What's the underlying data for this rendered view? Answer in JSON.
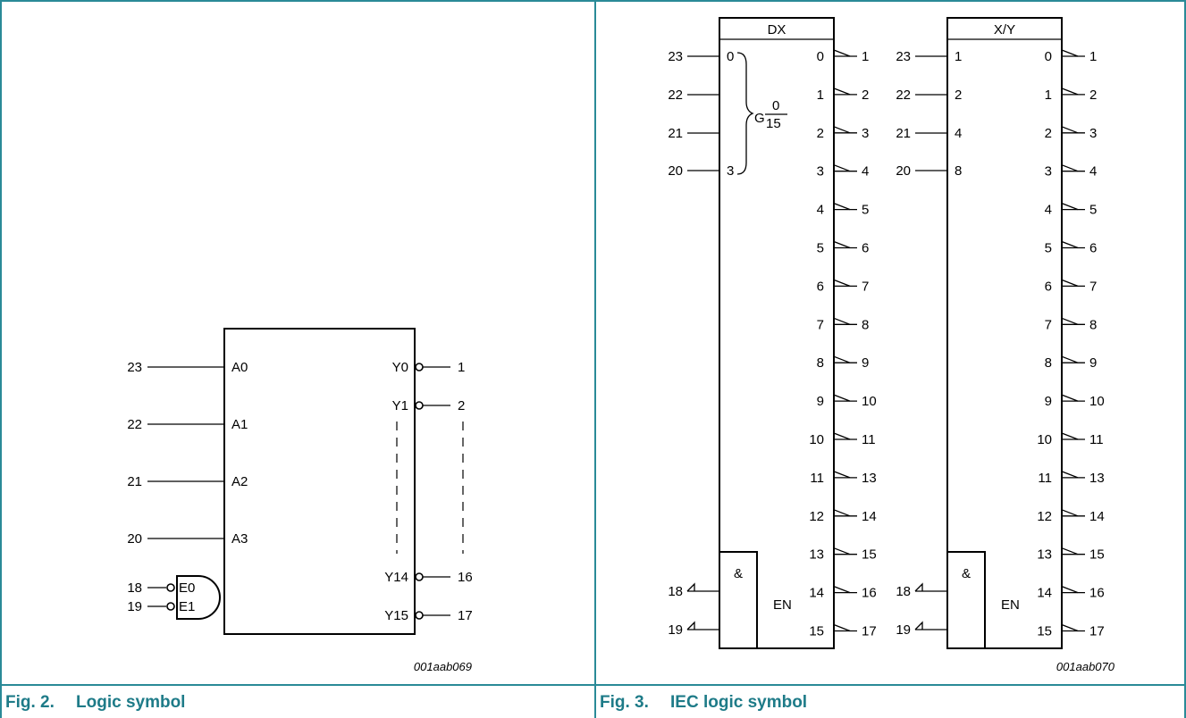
{
  "fig2": {
    "number": "Fig. 2.",
    "title": "Logic symbol",
    "id": "001aab069",
    "address_inputs": [
      {
        "pin": "23",
        "label": "A0"
      },
      {
        "pin": "22",
        "label": "A1"
      },
      {
        "pin": "21",
        "label": "A2"
      },
      {
        "pin": "20",
        "label": "A3"
      }
    ],
    "enable_inputs": [
      {
        "pin": "18",
        "label": "E0"
      },
      {
        "pin": "19",
        "label": "E1"
      }
    ],
    "outputs_top": [
      {
        "label": "Y0",
        "pin": "1"
      },
      {
        "label": "Y1",
        "pin": "2"
      }
    ],
    "outputs_bottom": [
      {
        "label": "Y14",
        "pin": "16"
      },
      {
        "label": "Y15",
        "pin": "17"
      }
    ]
  },
  "fig3": {
    "number": "Fig. 3.",
    "title": "IEC logic symbol",
    "id": "001aab070",
    "dx": {
      "header": "DX",
      "inputs": [
        {
          "pin": "23",
          "label": "0"
        },
        {
          "pin": "22",
          "label": ""
        },
        {
          "pin": "21",
          "label": ""
        },
        {
          "pin": "20",
          "label": "3"
        }
      ],
      "group_label": "G",
      "group_top": "0",
      "group_bottom": "15"
    },
    "xy": {
      "header": "X/Y",
      "inputs": [
        {
          "pin": "23",
          "label": "1"
        },
        {
          "pin": "22",
          "label": "2"
        },
        {
          "pin": "21",
          "label": "4"
        },
        {
          "pin": "20",
          "label": "8"
        }
      ]
    },
    "outputs": [
      {
        "label": "0",
        "pin": "1"
      },
      {
        "label": "1",
        "pin": "2"
      },
      {
        "label": "2",
        "pin": "3"
      },
      {
        "label": "3",
        "pin": "4"
      },
      {
        "label": "4",
        "pin": "5"
      },
      {
        "label": "5",
        "pin": "6"
      },
      {
        "label": "6",
        "pin": "7"
      },
      {
        "label": "7",
        "pin": "8"
      },
      {
        "label": "8",
        "pin": "9"
      },
      {
        "label": "9",
        "pin": "10"
      },
      {
        "label": "10",
        "pin": "11"
      },
      {
        "label": "11",
        "pin": "13"
      },
      {
        "label": "12",
        "pin": "14"
      },
      {
        "label": "13",
        "pin": "15"
      },
      {
        "label": "14",
        "pin": "16"
      },
      {
        "label": "15",
        "pin": "17"
      }
    ],
    "enable_symbol": "&",
    "enable_label": "EN",
    "enable_pins": [
      "18",
      "19"
    ]
  }
}
